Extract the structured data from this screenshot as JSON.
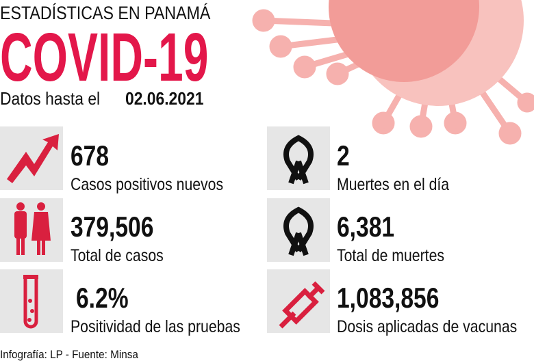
{
  "header": {
    "kicker": "ESTADÍSTICAS EN PANAMÁ",
    "title": "COVID-19",
    "date_prefix": "Datos hasta el",
    "date": "02.06.2021"
  },
  "stats": [
    {
      "value": "678",
      "label": "Casos positivos nuevos"
    },
    {
      "value": "2",
      "label": "Muertes en el día"
    },
    {
      "value": "379,506",
      "label": "Total de casos"
    },
    {
      "value": "6,381",
      "label": "Total de muertes"
    },
    {
      "value": "6.2%",
      "label": "Positividad de las pruebas"
    },
    {
      "value": "1,083,856",
      "label": "Dosis aplicadas de vacunas"
    }
  ],
  "footer": "Infografía: LP - Fuente: Minsa"
}
